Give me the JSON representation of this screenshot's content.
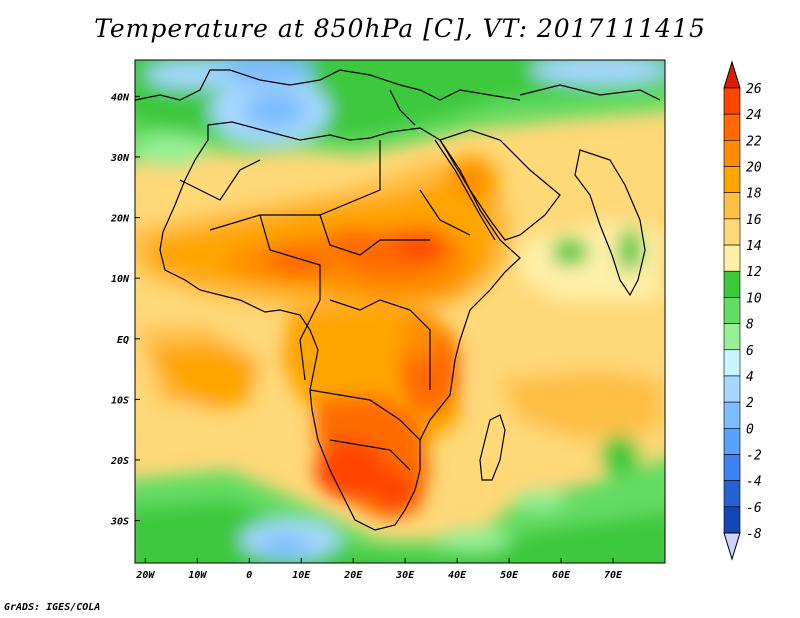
{
  "title": "Temperature at 850hPa [C], VT: 2017111415",
  "credit": "GrADS: IGES/COLA",
  "map": {
    "lon_range": [
      -22,
      80
    ],
    "lat_range": [
      -37,
      46
    ],
    "lon_labels": [
      {
        "lon": -20,
        "text": "20W"
      },
      {
        "lon": -10,
        "text": "10W"
      },
      {
        "lon": 0,
        "text": "0"
      },
      {
        "lon": 10,
        "text": "10E"
      },
      {
        "lon": 20,
        "text": "20E"
      },
      {
        "lon": 30,
        "text": "30E"
      },
      {
        "lon": 40,
        "text": "40E"
      },
      {
        "lon": 50,
        "text": "50E"
      },
      {
        "lon": 60,
        "text": "60E"
      },
      {
        "lon": 70,
        "text": "70E"
      }
    ],
    "lat_labels": [
      {
        "lat": 40,
        "text": "40N"
      },
      {
        "lat": 30,
        "text": "30N"
      },
      {
        "lat": 20,
        "text": "20N"
      },
      {
        "lat": 10,
        "text": "10N"
      },
      {
        "lat": 0,
        "text": "EQ"
      },
      {
        "lat": -10,
        "text": "10S"
      },
      {
        "lat": -20,
        "text": "20S"
      },
      {
        "lat": -30,
        "text": "30S"
      }
    ]
  },
  "colorbar": {
    "levels": [
      "26",
      "24",
      "22",
      "20",
      "18",
      "16",
      "14",
      "12",
      "10",
      "8",
      "6",
      "4",
      "2",
      "0",
      "-2",
      "-4",
      "-6",
      "-8"
    ],
    "colors": [
      "#ff4500",
      "#ff6a00",
      "#ff8c00",
      "#ffa500",
      "#ffbe45",
      "#ffd878",
      "#fff0a8",
      "#3cc83c",
      "#64dc64",
      "#96f096",
      "#c8f5ff",
      "#a5d7ff",
      "#7dbcff",
      "#5aa0ff",
      "#3c82f0",
      "#2862d2",
      "#1446b4",
      "#0a1e8c",
      "#d2d2ff"
    ],
    "top_color": "#dc1e00",
    "bottom_color": "#d2d2ff"
  }
}
